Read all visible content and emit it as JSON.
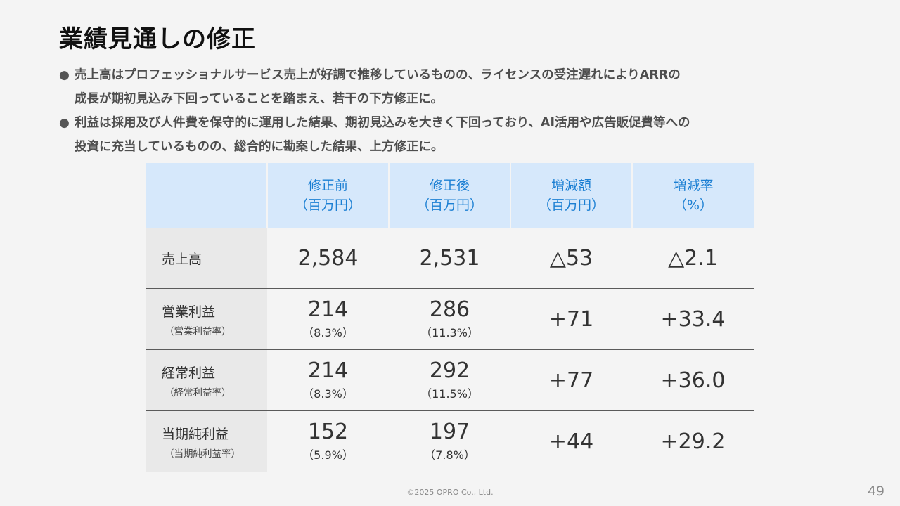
{
  "title": "業績見通しの修正",
  "bullets": [
    {
      "marker": "●",
      "line1": "売上高はプロフェッショナルサービス売上が好調で推移しているものの、ライセンスの受注遅れによりARRの",
      "line2": "成長が期初見込み下回っていることを踏まえ、若干の下方修正に。"
    },
    {
      "marker": "●",
      "line1": "利益は採用及び人件費を保守的に運用した結果、期初見込みを大きく下回っており、AI活用や広告販促費等への",
      "line2": "投資に充当しているものの、総合的に勘案した結果、上方修正に。"
    }
  ],
  "table": {
    "headers": [
      {
        "line1": "修正前",
        "line2": "（百万円）"
      },
      {
        "line1": "修正後",
        "line2": "（百万円）"
      },
      {
        "line1": "増減額",
        "line2": "（百万円）"
      },
      {
        "line1": "増減率",
        "line2": "（%）"
      }
    ],
    "rows": [
      {
        "label": "売上高",
        "sublabel": "",
        "before": "2,584",
        "before_sub": "",
        "after": "2,531",
        "after_sub": "",
        "diff": "△53",
        "rate": "△2.1"
      },
      {
        "label": "営業利益",
        "sublabel": "（営業利益率）",
        "before": "214",
        "before_sub": "（8.3%）",
        "after": "286",
        "after_sub": "（11.3%）",
        "diff": "+71",
        "rate": "+33.4"
      },
      {
        "label": "経常利益",
        "sublabel": "（経常利益率）",
        "before": "214",
        "before_sub": "（8.3%）",
        "after": "292",
        "after_sub": "（11.5%）",
        "diff": "+77",
        "rate": "+36.0"
      },
      {
        "label": "当期純利益",
        "sublabel": "（当期純利益率）",
        "before": "152",
        "before_sub": "（5.9%）",
        "after": "197",
        "after_sub": "（7.8%）",
        "diff": "+44",
        "rate": "+29.2"
      }
    ]
  },
  "footer": "©2025 OPRO Co., Ltd.",
  "page_number": "49"
}
